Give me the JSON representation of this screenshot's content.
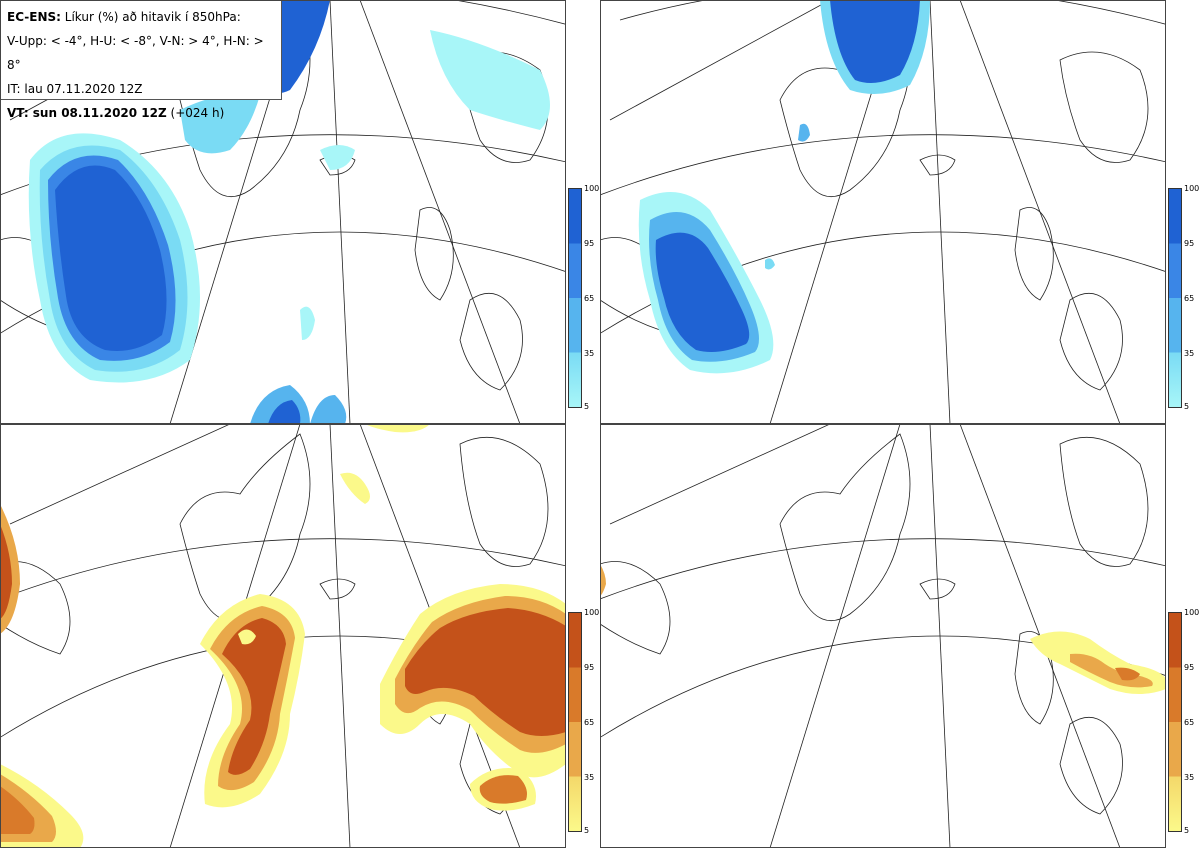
{
  "legend": {
    "line1_bold": "EC-ENS:",
    "line1_rest": " Líkur (%) að hitavik í 850hPa:",
    "line2": "V-Upp: < -4°, H-U: < -8°, V-N: > 4°, H-N: > 8°",
    "line3": "IT: lau 07.11.2020 12Z",
    "line4_bold": "VT: sun 08.11.2020 12Z",
    "line4_rest": " (+024 h)"
  },
  "colorbars": {
    "ticks": [
      "100",
      "95",
      "65",
      "35",
      "5"
    ],
    "blue": [
      "#1f62d3",
      "#3a86e6",
      "#56b4ee",
      "#7adbf4",
      "#a8f6f8"
    ],
    "orange": [
      "#c4521a",
      "#d97a2a",
      "#e9a84a",
      "#f4d86a",
      "#fbf98a"
    ]
  },
  "panels": [
    {
      "id": "V-Upp",
      "scheme": "blue"
    },
    {
      "id": "H-U",
      "scheme": "blue"
    },
    {
      "id": "V-N",
      "scheme": "orange"
    },
    {
      "id": "H-N",
      "scheme": "orange"
    }
  ]
}
